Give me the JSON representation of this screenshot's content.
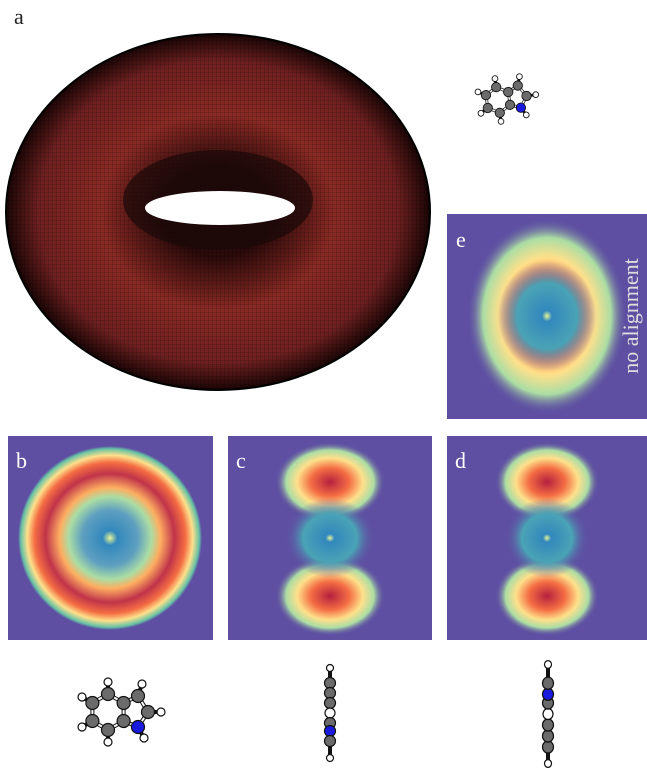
{
  "labels": [
    "a",
    "b",
    "c",
    "d",
    "e"
  ],
  "annotation": "no alignment"
}
